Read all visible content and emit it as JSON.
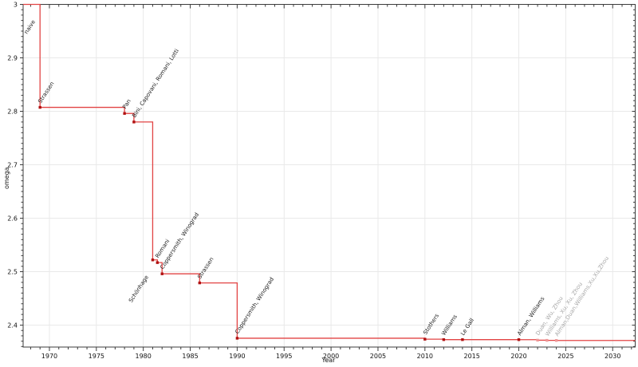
{
  "chart_data": {
    "type": "step-line",
    "title": "",
    "xlabel": "Year",
    "ylabel": "omega",
    "x_range": [
      1967.2,
      2032.4
    ],
    "y_range": [
      2.359,
      3.0
    ],
    "x_ticks": [
      {
        "value": 1970,
        "label": "1970"
      },
      {
        "value": 1975,
        "label": "1975"
      },
      {
        "value": 1980,
        "label": "1980"
      },
      {
        "value": 1985,
        "label": "1985"
      },
      {
        "value": 1990,
        "label": "1990"
      },
      {
        "value": 1995,
        "label": "1995"
      },
      {
        "value": 2000,
        "label": "2000"
      },
      {
        "value": 2005,
        "label": "2005"
      },
      {
        "value": 2010,
        "label": "2010"
      },
      {
        "value": 2015,
        "label": "2015"
      },
      {
        "value": 2020,
        "label": "2020"
      },
      {
        "value": 2025,
        "label": "2025"
      },
      {
        "value": 2030,
        "label": "2030"
      }
    ],
    "y_ticks": [
      {
        "value": 2.4,
        "label": "2.4"
      },
      {
        "value": 2.5,
        "label": "2.5"
      },
      {
        "value": 2.6,
        "label": "2.6"
      },
      {
        "value": 2.7,
        "label": "2.7"
      },
      {
        "value": 2.8,
        "label": "2.8"
      },
      {
        "value": 2.9,
        "label": "2.9"
      },
      {
        "value": 3.0,
        "label": "3"
      }
    ],
    "x_minor_step": 1,
    "y_minor_step": 0.01,
    "grid": true,
    "legend": "none",
    "colors": {
      "line": "#e24444",
      "marker": "#b01111",
      "marker_faded": "#ee9797",
      "label": "#1a1a1a",
      "label_faded": "#a8a8a8",
      "grid": "#e9e9e9",
      "frame": "#3c3c3c",
      "tick": "#3c3c3c",
      "background": "#ffffff"
    },
    "points": [
      {
        "year": 1968.9,
        "omega": 3.0,
        "label": "naive",
        "marker": false,
        "faded": false,
        "label_pos": "below"
      },
      {
        "year": 1969,
        "omega": 2.8074,
        "label": "Strassen",
        "marker": true,
        "faded": false,
        "label_pos": "above"
      },
      {
        "year": 1978,
        "omega": 2.796,
        "label": "Pan",
        "marker": true,
        "faded": false,
        "label_pos": "above"
      },
      {
        "year": 1979,
        "omega": 2.78,
        "label": "Bini, Capovani, Romani, Lotti",
        "marker": true,
        "faded": false,
        "label_pos": "above"
      },
      {
        "year": 1981,
        "omega": 2.522,
        "label": "Schönhage",
        "marker": true,
        "faded": false,
        "label_pos": "below"
      },
      {
        "year": 1981.5,
        "omega": 2.517,
        "label": "Romani",
        "marker": true,
        "faded": false,
        "label_pos": "above"
      },
      {
        "year": 1982,
        "omega": 2.496,
        "label": "Coppersmith, Winograd",
        "marker": true,
        "faded": false,
        "label_pos": "above"
      },
      {
        "year": 1986,
        "omega": 2.479,
        "label": "Strassen",
        "marker": true,
        "faded": false,
        "label_pos": "above"
      },
      {
        "year": 1990,
        "omega": 2.3755,
        "label": "Coppersmith, Winograd",
        "marker": true,
        "faded": false,
        "label_pos": "above"
      },
      {
        "year": 2010,
        "omega": 2.3737,
        "label": "Stothers",
        "marker": true,
        "faded": false,
        "label_pos": "above"
      },
      {
        "year": 2012,
        "omega": 2.3729,
        "label": "Williams",
        "marker": true,
        "faded": false,
        "label_pos": "above"
      },
      {
        "year": 2014,
        "omega": 2.3728639,
        "label": "Le Gall",
        "marker": true,
        "faded": false,
        "label_pos": "above"
      },
      {
        "year": 2020,
        "omega": 2.3728596,
        "label": "Alman, Williams",
        "marker": true,
        "faded": false,
        "label_pos": "above"
      },
      {
        "year": 2022,
        "omega": 2.371866,
        "label": "Duan, Wu, Zhou",
        "marker": true,
        "faded": true,
        "label_pos": "above"
      },
      {
        "year": 2023,
        "omega": 2.371552,
        "label": "Williams, Xu, Xu, Zhou",
        "marker": true,
        "faded": true,
        "label_pos": "above"
      },
      {
        "year": 2024,
        "omega": 2.371339,
        "label": "Alman,Duan,Williams,Xu,Xu,Zhou",
        "marker": true,
        "faded": true,
        "label_pos": "above"
      }
    ]
  }
}
